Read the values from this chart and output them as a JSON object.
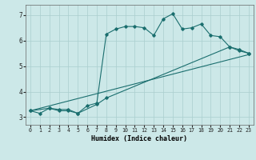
{
  "title": "",
  "xlabel": "Humidex (Indice chaleur)",
  "bg_color": "#cce8e8",
  "grid_color": "#aacece",
  "line_color": "#1a6e6e",
  "xlim": [
    -0.5,
    23.5
  ],
  "ylim": [
    2.7,
    7.4
  ],
  "xticks": [
    0,
    1,
    2,
    3,
    4,
    5,
    6,
    7,
    8,
    9,
    10,
    11,
    12,
    13,
    14,
    15,
    16,
    17,
    18,
    19,
    20,
    21,
    22,
    23
  ],
  "yticks": [
    3,
    4,
    5,
    6,
    7
  ],
  "line1_x": [
    0,
    1,
    2,
    3,
    4,
    5,
    6,
    7,
    8,
    9,
    10,
    11,
    12,
    13,
    14,
    15,
    16,
    17,
    18,
    19,
    20,
    21,
    22,
    23
  ],
  "line1_y": [
    3.25,
    3.15,
    3.35,
    3.25,
    3.25,
    3.15,
    3.45,
    3.55,
    6.25,
    6.45,
    6.55,
    6.55,
    6.5,
    6.2,
    6.85,
    7.05,
    6.45,
    6.5,
    6.65,
    6.2,
    6.15,
    5.75,
    5.65,
    5.5
  ],
  "line2_x": [
    0,
    2,
    3,
    4,
    5,
    7,
    8,
    21,
    22,
    23
  ],
  "line2_y": [
    3.25,
    3.35,
    3.3,
    3.3,
    3.15,
    3.5,
    3.75,
    5.75,
    5.6,
    5.5
  ],
  "line3_x": [
    0,
    23
  ],
  "line3_y": [
    3.25,
    5.45
  ]
}
